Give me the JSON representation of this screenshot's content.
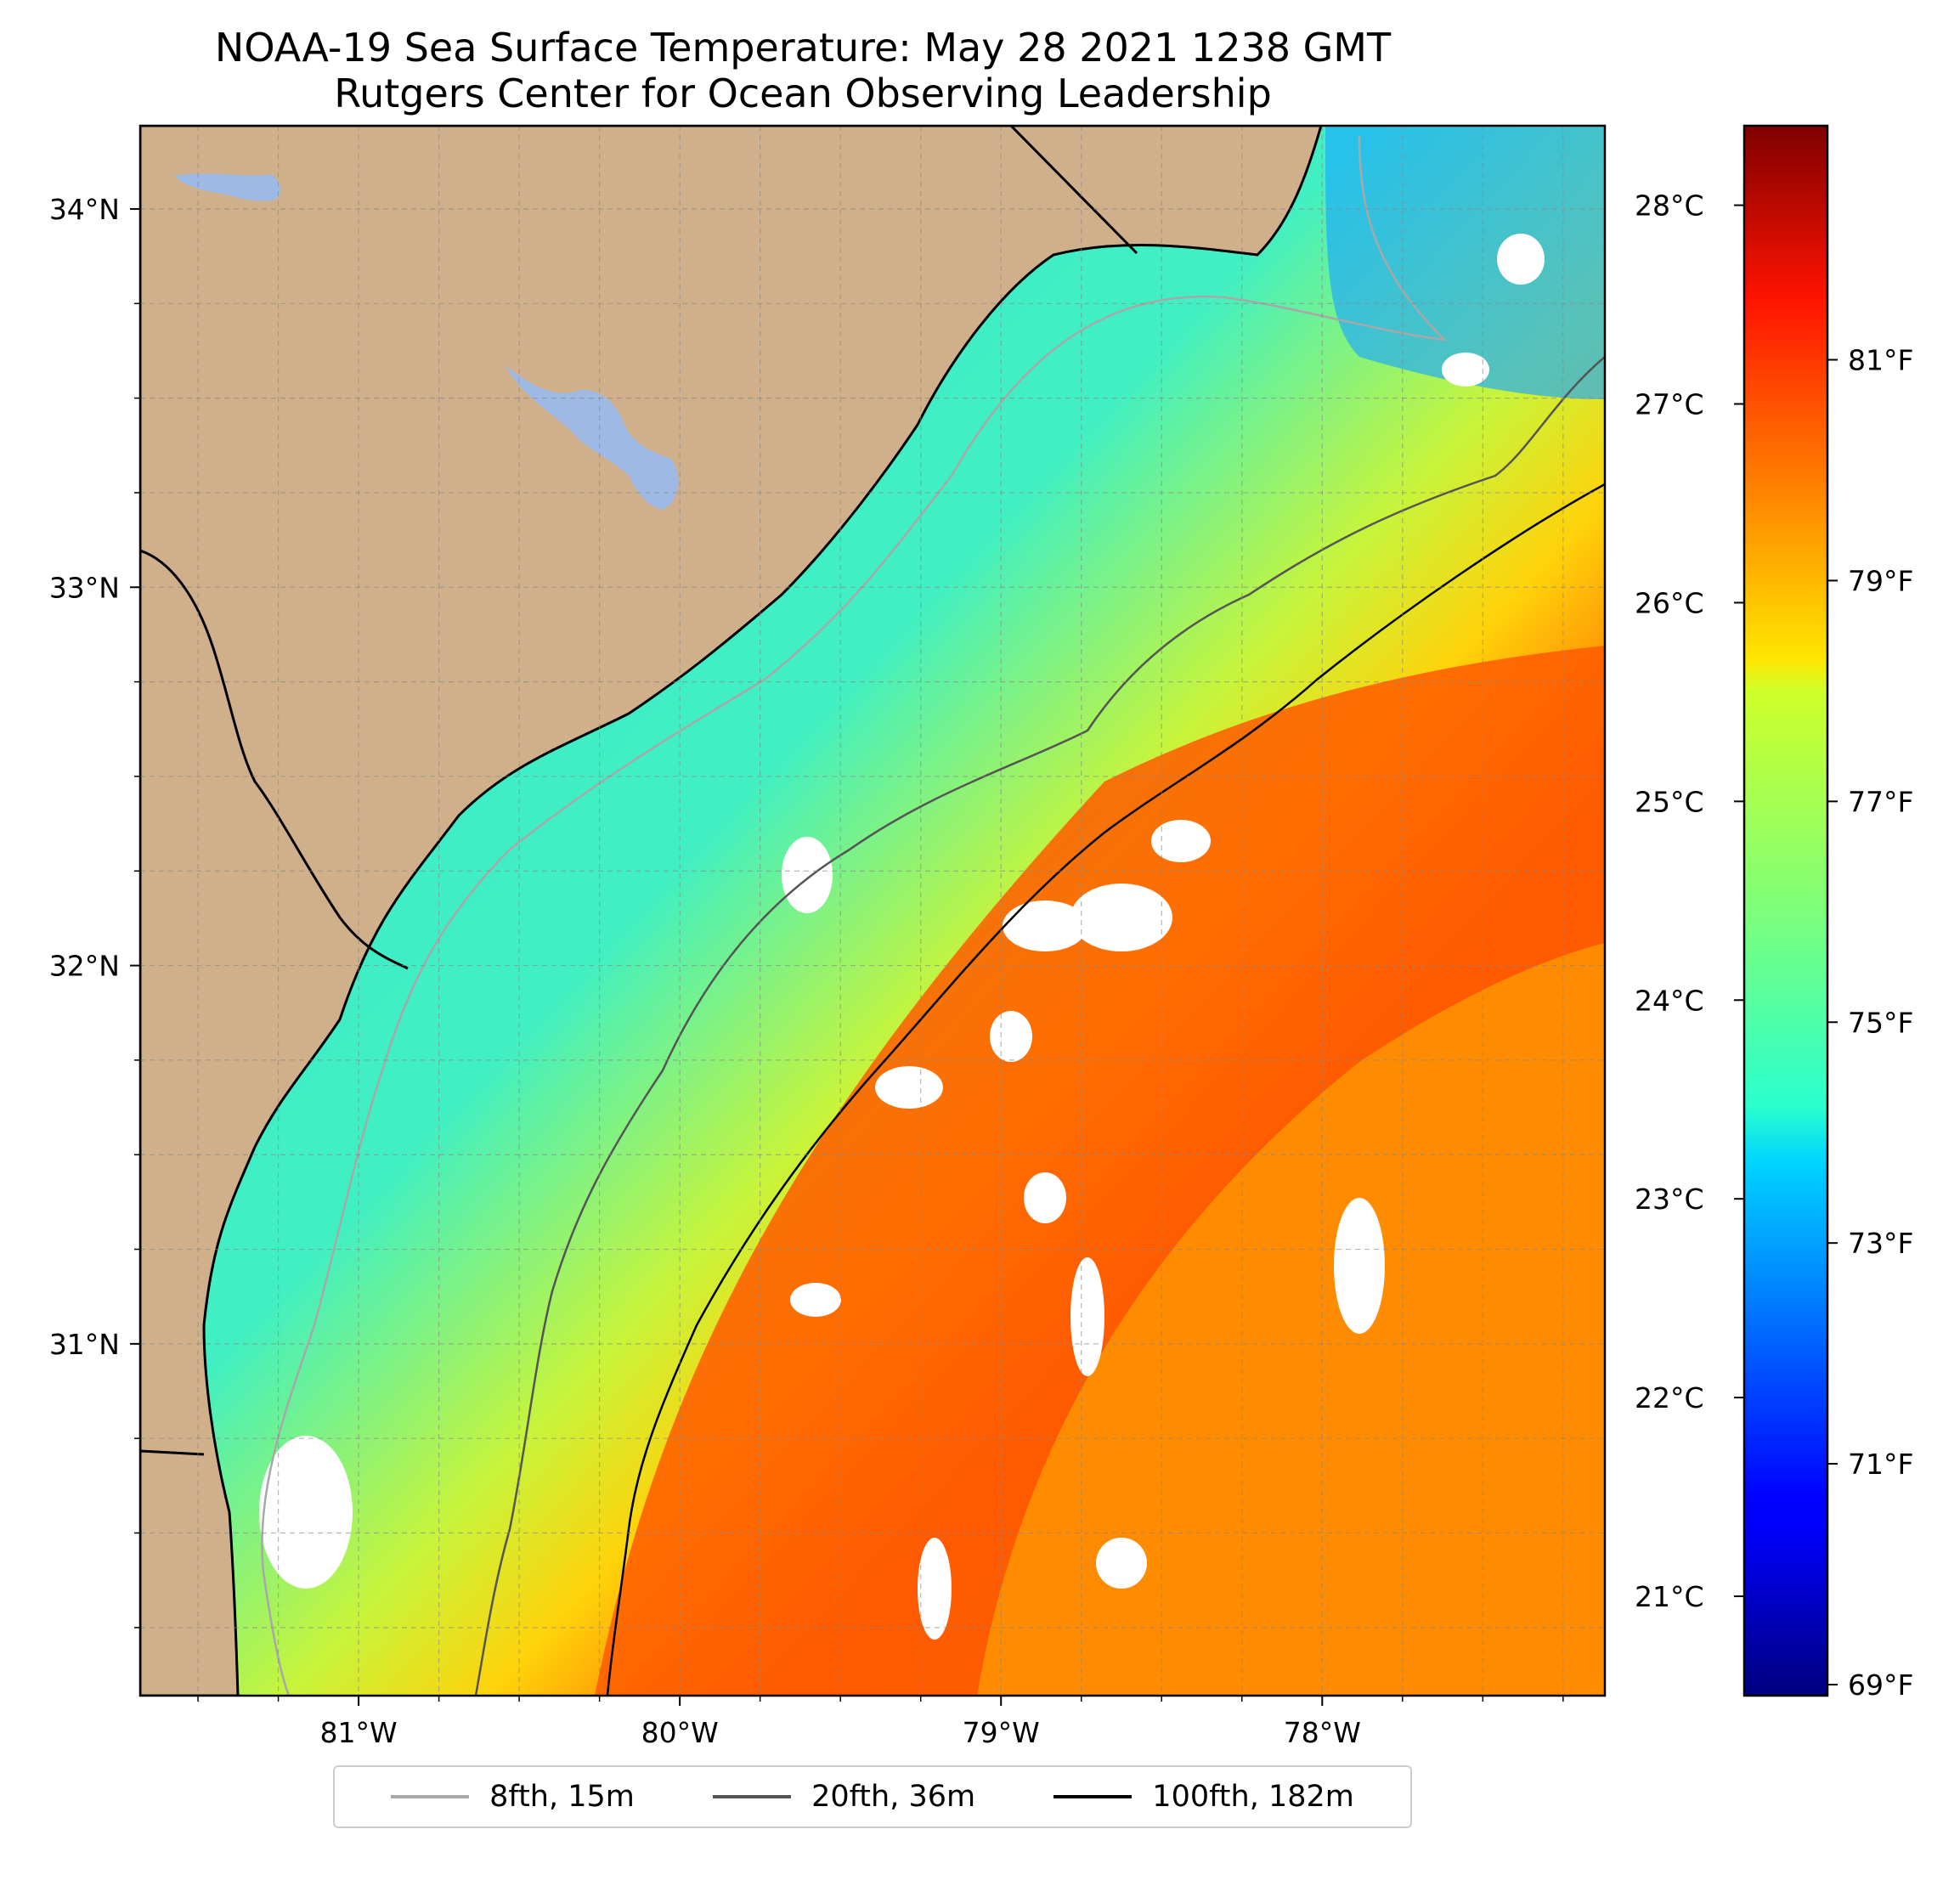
{
  "title_line1": "NOAA-19 Sea Surface Temperature: May 28 2021 1238 GMT",
  "title_line2": "Rutgers Center for Ocean Observing Leadership",
  "map": {
    "lon_range": [
      -81.68,
      -77.12
    ],
    "lat_range": [
      30.07,
      34.22
    ],
    "lon_ticks": [
      {
        "value": -81,
        "label": "81°W"
      },
      {
        "value": -80,
        "label": "80°W"
      },
      {
        "value": -79,
        "label": "79°W"
      },
      {
        "value": -78,
        "label": "78°W"
      }
    ],
    "lat_ticks": [
      {
        "value": 31,
        "label": "31°N"
      },
      {
        "value": 32,
        "label": "32°N"
      },
      {
        "value": 33,
        "label": "33°N"
      },
      {
        "value": 34,
        "label": "34°N"
      }
    ],
    "gridlines": true,
    "colors": {
      "land": "#cfb08b",
      "lakes": "#9db9e4",
      "cloud": "#ffffff"
    }
  },
  "colorbar": {
    "colormap": "jet",
    "range_celsius": [
      20.5,
      28.4
    ],
    "celsius_ticks": [
      {
        "value": 21,
        "label": "21°C"
      },
      {
        "value": 22,
        "label": "22°C"
      },
      {
        "value": 23,
        "label": "23°C"
      },
      {
        "value": 24,
        "label": "24°C"
      },
      {
        "value": 25,
        "label": "25°C"
      },
      {
        "value": 26,
        "label": "26°C"
      },
      {
        "value": 27,
        "label": "27°C"
      },
      {
        "value": 28,
        "label": "28°C"
      }
    ],
    "fahrenheit_ticks": [
      {
        "value": 69,
        "label": "69°F"
      },
      {
        "value": 71,
        "label": "71°F"
      },
      {
        "value": 73,
        "label": "73°F"
      },
      {
        "value": 75,
        "label": "75°F"
      },
      {
        "value": 77,
        "label": "77°F"
      },
      {
        "value": 79,
        "label": "79°F"
      },
      {
        "value": 81,
        "label": "81°F"
      }
    ]
  },
  "legend": {
    "items": [
      {
        "label": "8fth, 15m",
        "color": "#a8a8a8"
      },
      {
        "label": "20fth, 36m",
        "color": "#555555"
      },
      {
        "label": "100fth, 182m",
        "color": "#000000"
      }
    ]
  }
}
